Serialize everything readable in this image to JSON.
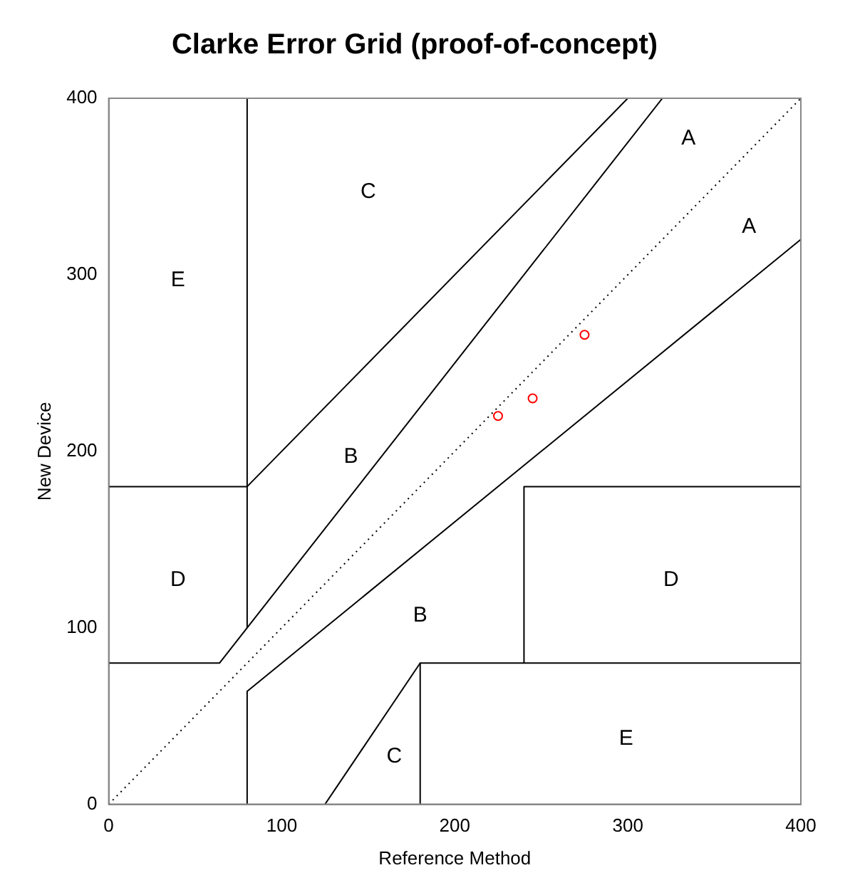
{
  "chart_data": {
    "type": "scatter",
    "title": "Clarke Error Grid (proof-of-concept)",
    "xlabel": "Reference Method",
    "ylabel": "New Device",
    "xlim": [
      0,
      400
    ],
    "ylim": [
      0,
      400
    ],
    "xticks": [
      0,
      100,
      200,
      300,
      400
    ],
    "yticks": [
      0,
      100,
      200,
      300,
      400
    ],
    "grid": false,
    "legend": false,
    "series": [
      {
        "type": "line",
        "color": "#000000",
        "line_style": "dotted",
        "marker": "none",
        "x": [
          0,
          400
        ],
        "values": [
          0,
          400
        ]
      },
      {
        "type": "line",
        "color": "#000000",
        "line_style": "solid",
        "marker": "none",
        "x": [
          0,
          64,
          320
        ],
        "values": [
          80,
          80,
          400
        ]
      },
      {
        "type": "line",
        "color": "#000000",
        "line_style": "solid",
        "marker": "none",
        "x": [
          80,
          80
        ],
        "values": [
          100,
          400
        ]
      },
      {
        "type": "line",
        "color": "#000000",
        "line_style": "solid",
        "marker": "none",
        "x": [
          0,
          80,
          300
        ],
        "values": [
          180,
          180,
          400
        ]
      },
      {
        "type": "line",
        "color": "#000000",
        "line_style": "solid",
        "marker": "none",
        "x": [
          80,
          80,
          400
        ],
        "values": [
          0,
          64,
          320
        ]
      },
      {
        "type": "line",
        "color": "#000000",
        "line_style": "solid",
        "marker": "none",
        "x": [
          180,
          180,
          400
        ],
        "values": [
          0,
          80,
          80
        ]
      },
      {
        "type": "line",
        "color": "#000000",
        "line_style": "solid",
        "marker": "none",
        "x": [
          240,
          240,
          400
        ],
        "values": [
          80,
          180,
          180
        ]
      },
      {
        "type": "line",
        "color": "#000000",
        "line_style": "solid",
        "marker": "none",
        "x": [
          125,
          180
        ],
        "values": [
          0,
          80
        ]
      },
      {
        "type": "scatter",
        "color": "#ff0000",
        "marker": "circle",
        "x": [
          225,
          245,
          275
        ],
        "values": [
          220,
          230,
          266
        ]
      }
    ],
    "annotations": [
      "A",
      "A",
      "C",
      "E",
      "B",
      "D",
      "B",
      "D",
      "C",
      "E"
    ]
  }
}
